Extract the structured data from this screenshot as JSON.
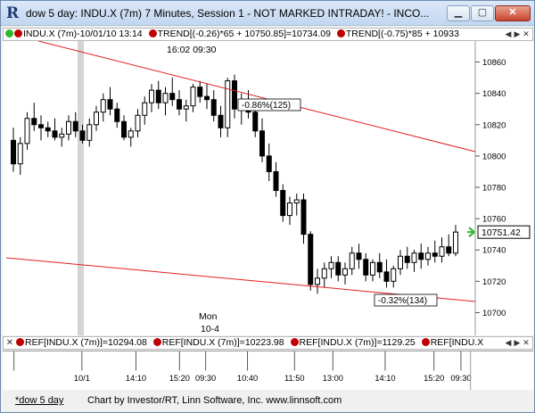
{
  "window": {
    "title": "dow 5 day: INDU.X (7m) 7 Minutes, Session 1 - NOT MARKED INTRADAY! - INCO...",
    "minimize_label": "▁",
    "maximize_label": "▢",
    "close_label": "✕"
  },
  "legend_top": {
    "item1": "INDU.X (7m)-10/01/10 13:14",
    "item2": "TREND[(-0.26)*65 + 10750.85]=10734.09",
    "item3": "TREND[(-0.75)*85 + 10933"
  },
  "legend_bottom": {
    "item1": "REF[INDU.X (7m)]=10294.08",
    "item2": "REF[INDU.X (7m)]=10223.98",
    "item3": "REF[INDU.X (7m)]=1129.25",
    "item4": "REF[INDU.X"
  },
  "annotations": {
    "time_header": "16:02  09:30",
    "trend_upper_label": "-0.86%(125)",
    "trend_lower_label": "-0.32%(134)",
    "day_label_line1": "Mon",
    "day_label_line2": "10-4",
    "last_price": "10751.42"
  },
  "status": {
    "tab": "*dow 5 day",
    "credit": "Chart by Investor/RT, Linn Software, Inc. www.linnsoft.com"
  },
  "colors": {
    "trend_line": "#e02020",
    "candle": "#000000",
    "price_marker": "#2bb82b"
  },
  "chart_data": {
    "type": "candlestick",
    "title": "INDU.X (7m)",
    "ylim": [
      10690,
      10870
    ],
    "y_ticks": [
      10700,
      10720,
      10740,
      10760,
      10780,
      10800,
      10820,
      10840,
      10860
    ],
    "x_tick_labels": [
      "10/1",
      "14:10",
      "15:20",
      "09:30",
      "10:40",
      "11:50",
      "13:00",
      "14:10",
      "15:20",
      "09:30"
    ],
    "last_value": 10751.42,
    "ohlc": [
      [
        10810,
        10818,
        10790,
        10795
      ],
      [
        10795,
        10812,
        10788,
        10808
      ],
      [
        10808,
        10828,
        10804,
        10824
      ],
      [
        10824,
        10834,
        10816,
        10820
      ],
      [
        10820,
        10826,
        10810,
        10818
      ],
      [
        10818,
        10822,
        10812,
        10816
      ],
      [
        10816,
        10824,
        10810,
        10812
      ],
      [
        10812,
        10818,
        10806,
        10814
      ],
      [
        10814,
        10826,
        10810,
        10822
      ],
      [
        10822,
        10828,
        10812,
        10816
      ],
      [
        10816,
        10820,
        10808,
        10810
      ],
      [
        10810,
        10824,
        10806,
        10820
      ],
      [
        10820,
        10832,
        10816,
        10828
      ],
      [
        10828,
        10840,
        10822,
        10836
      ],
      [
        10836,
        10844,
        10826,
        10830
      ],
      [
        10830,
        10834,
        10818,
        10822
      ],
      [
        10822,
        10826,
        10810,
        10812
      ],
      [
        10812,
        10818,
        10806,
        10816
      ],
      [
        10816,
        10830,
        10812,
        10826
      ],
      [
        10826,
        10838,
        10820,
        10834
      ],
      [
        10834,
        10846,
        10828,
        10842
      ],
      [
        10842,
        10848,
        10830,
        10834
      ],
      [
        10834,
        10844,
        10826,
        10840
      ],
      [
        10840,
        10850,
        10832,
        10836
      ],
      [
        10836,
        10842,
        10826,
        10830
      ],
      [
        10830,
        10836,
        10822,
        10832
      ],
      [
        10832,
        10846,
        10828,
        10844
      ],
      [
        10844,
        10848,
        10834,
        10838
      ],
      [
        10838,
        10846,
        10830,
        10836
      ],
      [
        10836,
        10842,
        10822,
        10826
      ],
      [
        10826,
        10832,
        10812,
        10818
      ],
      [
        10818,
        10850,
        10812,
        10848
      ],
      [
        10848,
        10852,
        10824,
        10830
      ],
      [
        10830,
        10840,
        10820,
        10836
      ],
      [
        10836,
        10842,
        10824,
        10828
      ],
      [
        10828,
        10834,
        10812,
        10816
      ],
      [
        10816,
        10824,
        10796,
        10800
      ],
      [
        10800,
        10808,
        10784,
        10790
      ],
      [
        10790,
        10796,
        10774,
        10778
      ],
      [
        10778,
        10782,
        10758,
        10762
      ],
      [
        10762,
        10774,
        10756,
        10770
      ],
      [
        10770,
        10776,
        10762,
        10772
      ],
      [
        10772,
        10776,
        10744,
        10750
      ],
      [
        10750,
        10752,
        10714,
        10718
      ],
      [
        10718,
        10728,
        10712,
        10722
      ],
      [
        10722,
        10732,
        10716,
        10728
      ],
      [
        10728,
        10736,
        10722,
        10732
      ],
      [
        10732,
        10736,
        10720,
        10724
      ],
      [
        10724,
        10732,
        10718,
        10728
      ],
      [
        10728,
        10742,
        10724,
        10738
      ],
      [
        10738,
        10744,
        10728,
        10734
      ],
      [
        10734,
        10738,
        10720,
        10724
      ],
      [
        10724,
        10734,
        10720,
        10732
      ],
      [
        10732,
        10738,
        10722,
        10726
      ],
      [
        10726,
        10734,
        10716,
        10720
      ],
      [
        10720,
        10730,
        10716,
        10728
      ],
      [
        10728,
        10740,
        10724,
        10736
      ],
      [
        10736,
        10742,
        10728,
        10732
      ],
      [
        10732,
        10740,
        10726,
        10738
      ],
      [
        10738,
        10744,
        10728,
        10734
      ],
      [
        10734,
        10742,
        10730,
        10738
      ],
      [
        10738,
        10746,
        10732,
        10736
      ],
      [
        10736,
        10748,
        10732,
        10742
      ],
      [
        10742,
        10750,
        10736,
        10738
      ],
      [
        10738,
        10756,
        10736,
        10751.42
      ]
    ]
  }
}
